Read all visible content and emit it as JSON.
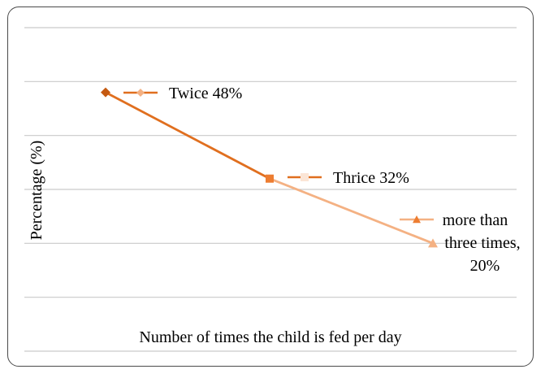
{
  "chart_data": {
    "type": "line",
    "xlabel": "Number of times the child is fed per day",
    "ylabel": "Percentage (%)",
    "ylim": [
      0,
      60
    ],
    "grid": true,
    "legend": "none (inline data labels)",
    "categories": [
      "Twice",
      "Thrice",
      "more than three times"
    ],
    "values": [
      48,
      32,
      20
    ],
    "points": [
      {
        "marker": "diamond",
        "color": "#c55a11",
        "legend_color": "#f4b183",
        "label_lines": [
          "Twice 48%"
        ]
      },
      {
        "marker": "square",
        "color": "#ed7d31",
        "legend_color": "#fbe5d6",
        "label_lines": [
          "Thrice 32%"
        ]
      },
      {
        "marker": "triangle",
        "color": "#f4b183",
        "legend_color": "#ed7d31",
        "label_lines": [
          "more than",
          "three times,",
          "20%"
        ]
      }
    ],
    "segment_colors": [
      "#e06f1f",
      "#f4b183"
    ]
  }
}
